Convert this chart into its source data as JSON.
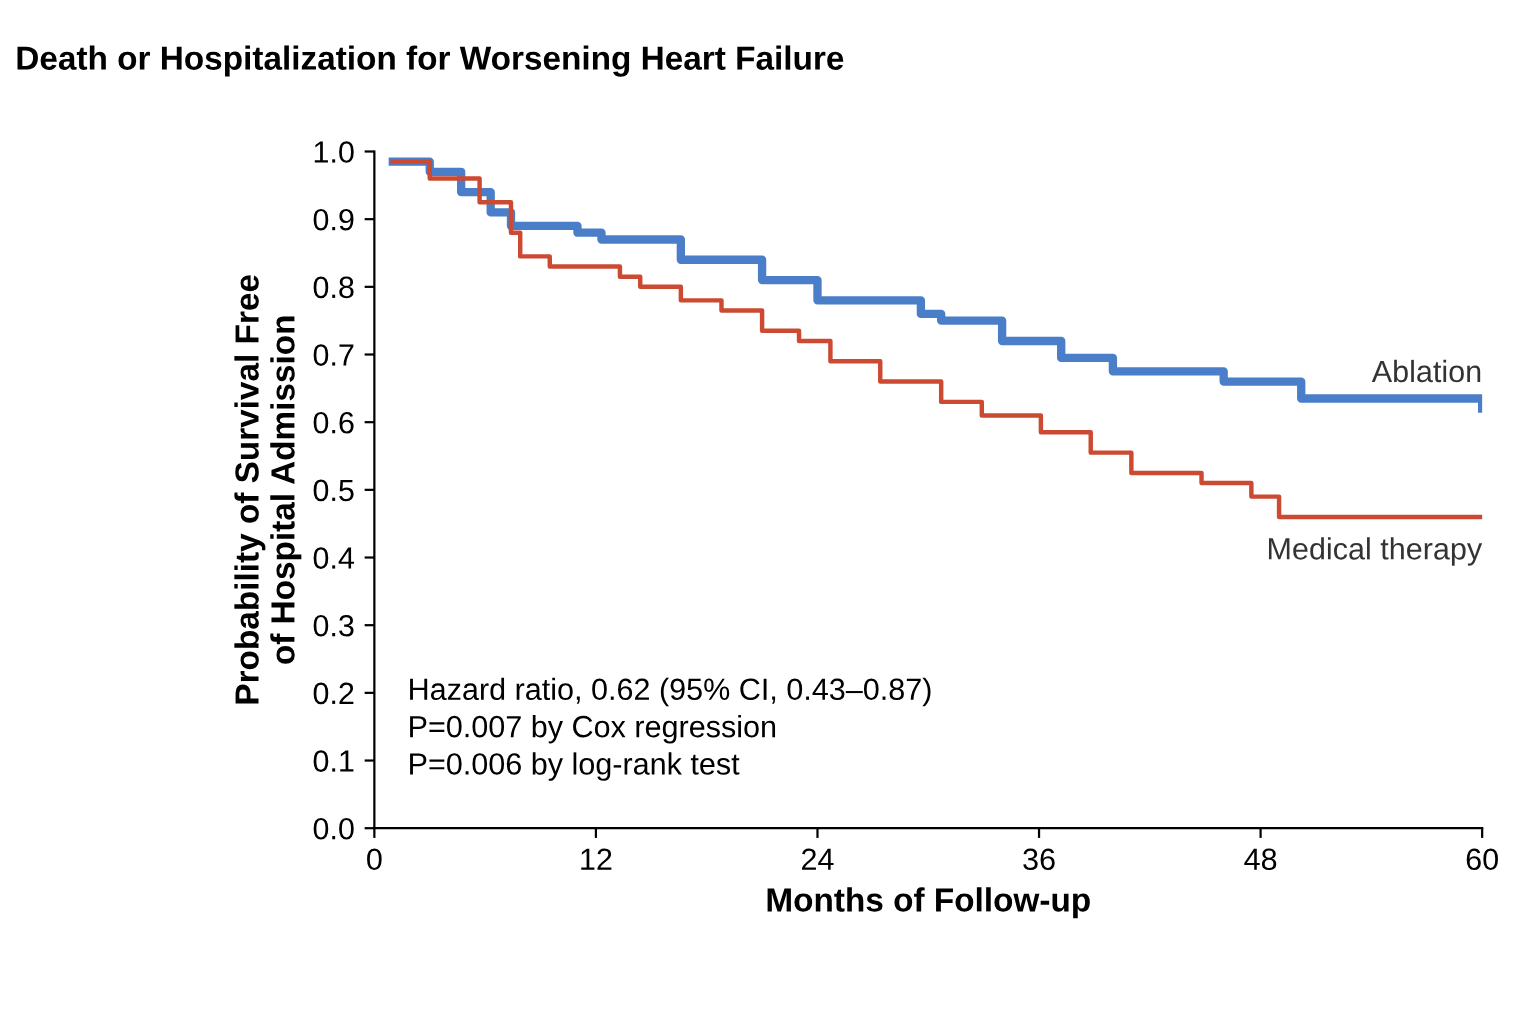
{
  "chart_data": {
    "type": "step",
    "title": "Death or Hospitalization for Worsening Heart Failure",
    "xlabel": "Months of Follow-up",
    "ylabel": "Probability of Survival Free\nof Hospital Admission",
    "xlim": [
      0,
      60
    ],
    "ylim": [
      0,
      1.0
    ],
    "xticks": [
      0,
      12,
      24,
      36,
      48,
      60
    ],
    "yticks": [
      {
        "value": 0,
        "label": "0.0"
      },
      0.1,
      0.2,
      0.3,
      0.4,
      0.5,
      0.6,
      0.7,
      0.8,
      0.9,
      {
        "value": 1,
        "label": "1.0"
      }
    ],
    "grid": false,
    "legend": false,
    "series": [
      {
        "name": "Ablation",
        "color": "#4a7ec8",
        "x": [
          1,
          3,
          4.7,
          6.3,
          7.4,
          11,
          12.3,
          16.6,
          21,
          24,
          29.6,
          30.7,
          34,
          37.2,
          40,
          46,
          50.2,
          60
        ],
        "values": [
          0.985,
          0.97,
          0.94,
          0.91,
          0.89,
          0.88,
          0.87,
          0.84,
          0.81,
          0.78,
          0.76,
          0.75,
          0.72,
          0.695,
          0.675,
          0.66,
          0.635,
          0.62
        ]
      },
      {
        "name": "Medical therapy",
        "color": "#cc4a32",
        "x": [
          1,
          3,
          5.7,
          7.4,
          7.9,
          9.5,
          13.3,
          14.4,
          16.6,
          18.8,
          21,
          23,
          24.7,
          27.4,
          30.7,
          32.9,
          36.1,
          38.8,
          41,
          44.8,
          47.5,
          49,
          60
        ],
        "values": [
          0.985,
          0.96,
          0.925,
          0.88,
          0.845,
          0.83,
          0.815,
          0.8,
          0.78,
          0.765,
          0.735,
          0.72,
          0.69,
          0.66,
          0.63,
          0.61,
          0.585,
          0.555,
          0.525,
          0.51,
          0.49,
          0.46,
          0.46
        ]
      }
    ],
    "annotations": [
      "Hazard ratio, 0.62 (95% CI, 0.43–0.87)\nP=0.007 by Cox regression\nP=0.006 by log-rank test"
    ]
  }
}
